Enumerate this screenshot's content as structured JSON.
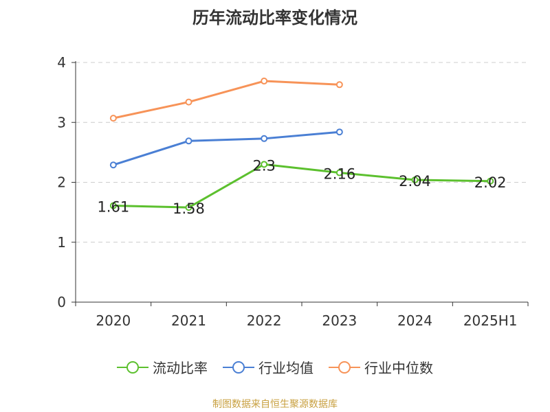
{
  "chart_data": {
    "type": "line",
    "title": "历年流动比率变化情况",
    "categories": [
      "2020",
      "2021",
      "2022",
      "2023",
      "2024",
      "2025H1"
    ],
    "ylim": [
      0,
      4
    ],
    "yticks": [
      0,
      1,
      2,
      3,
      4
    ],
    "grid": true,
    "legend_position": "bottom",
    "series": [
      {
        "name": "流动比率",
        "color": "#5cc02e",
        "values": [
          1.61,
          1.58,
          2.3,
          2.16,
          2.04,
          2.02
        ],
        "labels": [
          "1.61",
          "1.58",
          "2.3",
          "2.16",
          "2.04",
          "2.02"
        ]
      },
      {
        "name": "行业均值",
        "color": "#4a7fd4",
        "values": [
          2.29,
          2.69,
          2.73,
          2.84,
          null,
          null
        ]
      },
      {
        "name": "行业中位数",
        "color": "#f79358",
        "values": [
          3.07,
          3.34,
          3.69,
          3.63,
          null,
          null
        ]
      }
    ]
  },
  "source": "制图数据来自恒生聚源数据库"
}
